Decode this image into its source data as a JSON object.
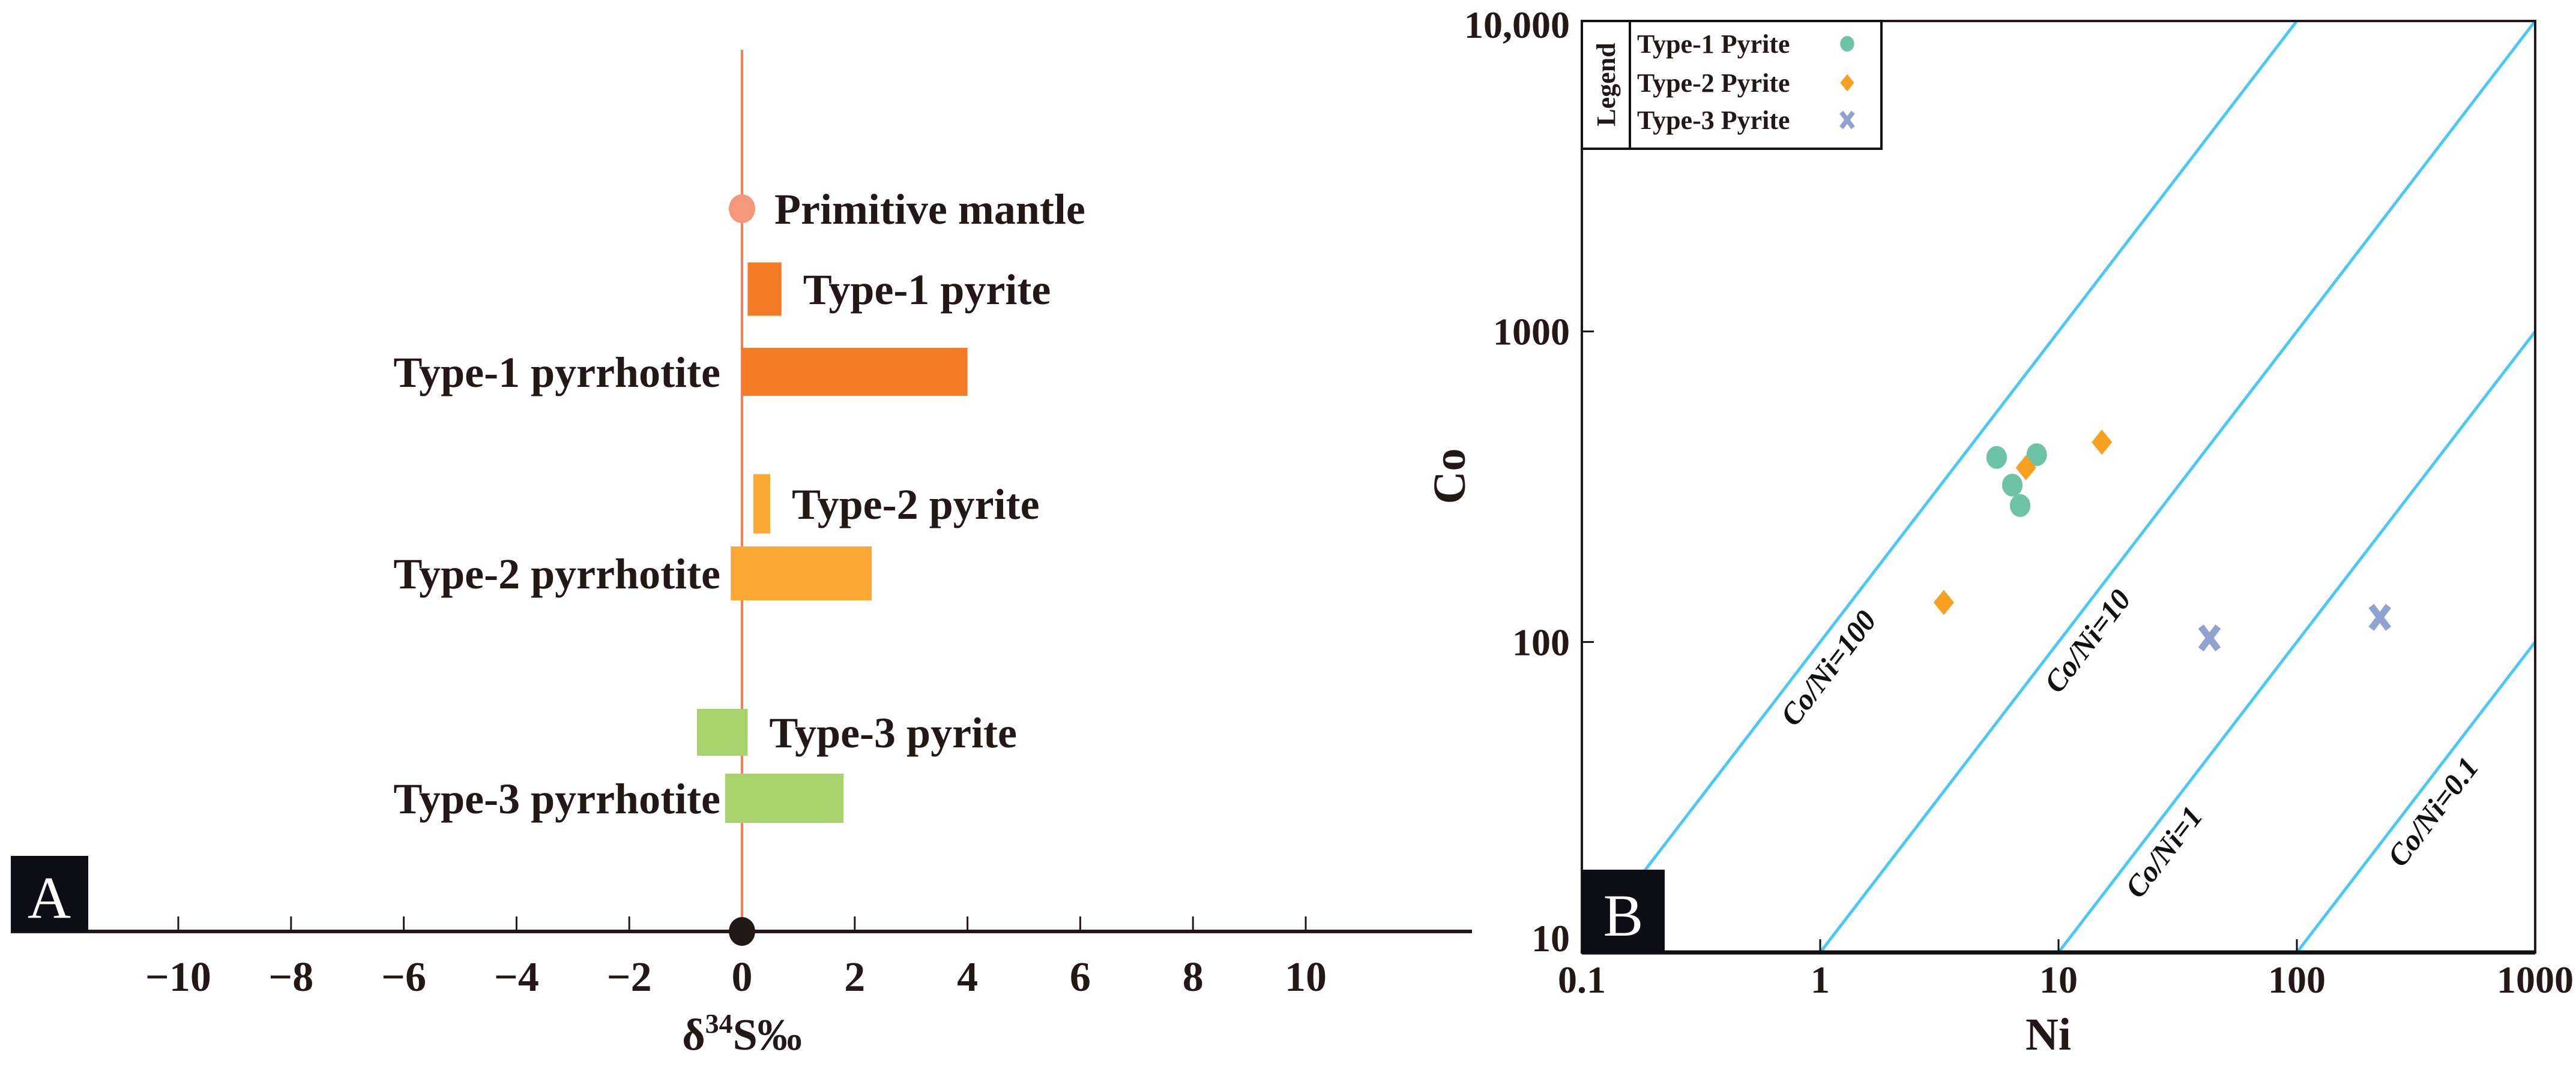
{
  "chart_data": [
    {
      "panel": "A",
      "type": "bar",
      "orientation": "horizontal-range",
      "xlabel": "δ34S‰",
      "xlabel_parts": {
        "delta": "δ",
        "sup": "34",
        "rest": "S‰"
      },
      "xlim": [
        -12,
        14
      ],
      "xticks": [
        -10,
        -8,
        -6,
        -4,
        -2,
        0,
        2,
        4,
        6,
        8,
        10
      ],
      "xtick_labels": [
        "−10",
        "−8",
        "−6",
        "−4",
        "−2",
        "0",
        "2",
        "4",
        "6",
        "8",
        "10"
      ],
      "reference_line": {
        "x": 0,
        "color": "#f0805e"
      },
      "reference_point": {
        "label": "Primitive mantle",
        "x": 0,
        "color": "#f4977a"
      },
      "series": [
        {
          "name": "Type-1 pyrite",
          "min": 0.1,
          "max": 0.7,
          "color": "#f47a25",
          "label_side": "right"
        },
        {
          "name": "Type-1 pyrrhotite",
          "min": 0.0,
          "max": 4.0,
          "color": "#f47a25",
          "label_side": "left"
        },
        {
          "name": "Type-2 pyrite",
          "min": 0.2,
          "max": 0.5,
          "color": "#fba834",
          "label_side": "right"
        },
        {
          "name": "Type-2 pyrrhotite",
          "min": -0.2,
          "max": 2.3,
          "color": "#fba834",
          "label_side": "left"
        },
        {
          "name": "Type-3 pyrite",
          "min": -0.8,
          "max": 0.1,
          "color": "#a7d26e",
          "label_side": "right"
        },
        {
          "name": "Type-3 pyrrhotite",
          "min": -0.3,
          "max": 1.8,
          "color": "#a7d26e",
          "label_side": "left"
        }
      ]
    },
    {
      "panel": "B",
      "type": "scatter",
      "xlabel": "Ni",
      "ylabel": "Co",
      "xscale": "log",
      "yscale": "log",
      "xlim": [
        0.1,
        1000
      ],
      "ylim": [
        10,
        10000
      ],
      "xtick_labels": [
        "0.1",
        "1",
        "10",
        "100",
        "1000"
      ],
      "xticks": [
        0.1,
        1,
        10,
        100,
        1000
      ],
      "ytick_labels": [
        "10",
        "100",
        "1000",
        "10,000"
      ],
      "yticks": [
        10,
        100,
        1000,
        10000
      ],
      "legend": {
        "title": "Legend",
        "placement": "top-left"
      },
      "ratio_lines": [
        {
          "label": "Co/Ni=100",
          "ratio": 100
        },
        {
          "label": "Co/Ni=10",
          "ratio": 10
        },
        {
          "label": "Co/Ni=1",
          "ratio": 1
        },
        {
          "label": "Co/Ni=0.1",
          "ratio": 0.1
        }
      ],
      "ratio_line_color": "#4cc8f4",
      "series": [
        {
          "name": "Type-1 Pyrite",
          "marker": "circle",
          "color": "#6cc3a5",
          "points": [
            [
              5.5,
              393
            ],
            [
              8.1,
              401
            ],
            [
              6.4,
              320
            ],
            [
              6.9,
              275
            ]
          ]
        },
        {
          "name": "Type-2 Pyrite",
          "marker": "diamond",
          "color": "#f7a021",
          "points": [
            [
              15.2,
              440
            ],
            [
              7.3,
              364
            ],
            [
              3.3,
              134
            ]
          ]
        },
        {
          "name": "Type-3 Pyrite",
          "marker": "cross",
          "color": "#90a3d0",
          "points": [
            [
              43,
              103
            ],
            [
              223,
              120
            ]
          ]
        }
      ]
    }
  ],
  "panel_labels": {
    "a": "A",
    "b": "B"
  }
}
